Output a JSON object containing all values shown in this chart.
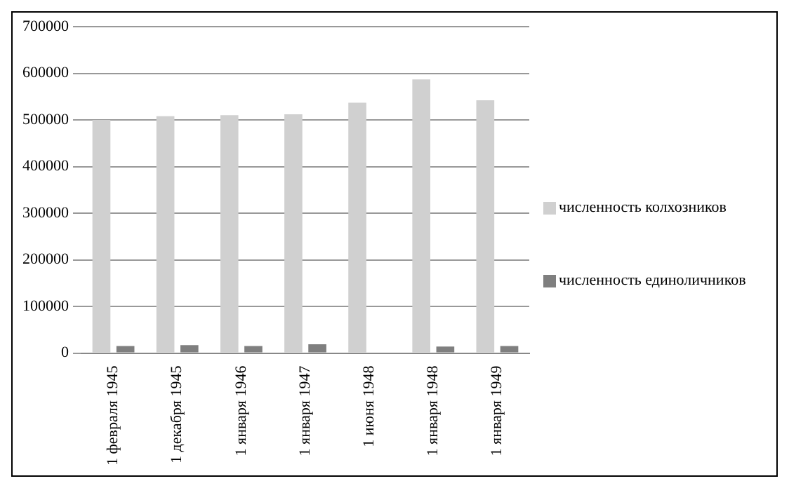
{
  "chart_data": {
    "type": "bar",
    "categories": [
      "1 февраля 1945",
      "1 декабря 1945",
      "1 января 1946",
      "1 января 1947",
      "1 июня 1948",
      "1 января 1948",
      "1 января 1949"
    ],
    "series": [
      {
        "name": "численность колхозников",
        "color": "#d0d0d0",
        "values": [
          500000,
          508000,
          510000,
          512000,
          537000,
          587000,
          542000
        ]
      },
      {
        "name": "численность единоличников",
        "color": "#7f7f7f",
        "values": [
          15000,
          17000,
          15000,
          19000,
          null,
          14000,
          15000
        ]
      }
    ],
    "ylim": [
      0,
      700000
    ],
    "yticks": [
      0,
      100000,
      200000,
      300000,
      400000,
      500000,
      600000,
      700000
    ],
    "grid": "y",
    "legend": "right"
  }
}
